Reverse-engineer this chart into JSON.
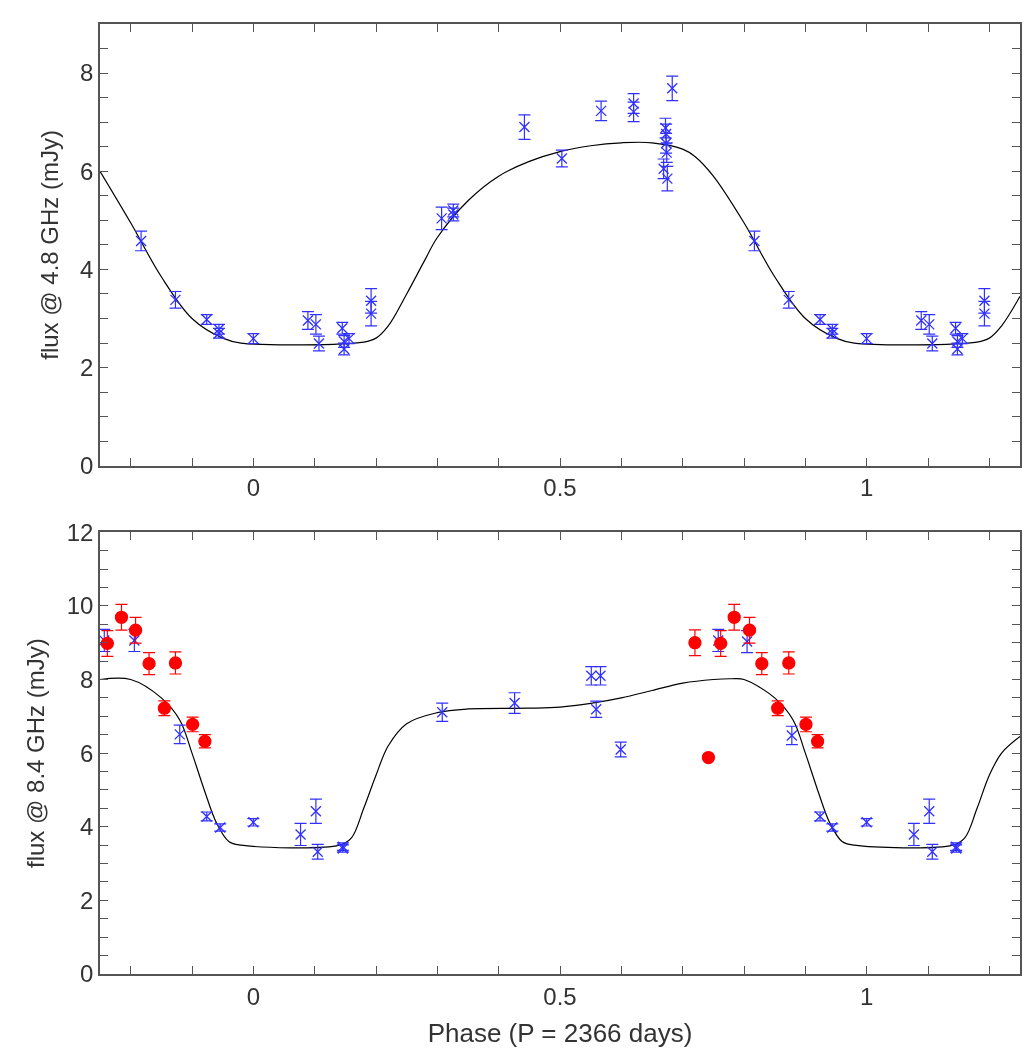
{
  "chart_data": [
    {
      "type": "scatter",
      "ylabel": "flux @ 4.8 GHz (mJy)",
      "xlim": [
        -0.25,
        1.25
      ],
      "xticks": [
        {
          "value": -0.2,
          "label": null
        },
        {
          "value": -0.1,
          "label": null
        },
        0,
        {
          "value": 0.1,
          "label": null
        },
        {
          "value": 0.2,
          "label": null
        },
        {
          "value": 0.3,
          "label": null
        },
        {
          "value": 0.4,
          "label": null
        },
        0.5,
        {
          "value": 0.6,
          "label": null
        },
        {
          "value": 0.7,
          "label": null
        },
        {
          "value": 0.8,
          "label": null
        },
        {
          "value": 0.9,
          "label": null
        },
        1,
        {
          "value": 1.1,
          "label": null
        },
        {
          "value": 1.2,
          "label": null
        }
      ],
      "ylim": [
        0,
        9
      ],
      "yticks": [
        0,
        {
          "value": 0.5,
          "label": null
        },
        {
          "value": 1,
          "label": null
        },
        {
          "value": 1.5,
          "label": null
        },
        2,
        {
          "value": 2.5,
          "label": null
        },
        {
          "value": 3,
          "label": null
        },
        {
          "value": 3.5,
          "label": null
        },
        4,
        {
          "value": 4.5,
          "label": null
        },
        {
          "value": 5,
          "label": null
        },
        {
          "value": 5.5,
          "label": null
        },
        6,
        {
          "value": 6.5,
          "label": null
        },
        {
          "value": 7,
          "label": null
        },
        {
          "value": 7.5,
          "label": null
        },
        8,
        {
          "value": 8.5,
          "label": null
        }
      ],
      "series": [
        {
          "type": "line",
          "color": "#000000",
          "marker": "none",
          "line_style": "solid",
          "x": [
            -0.25,
            -0.2,
            -0.15,
            -0.1,
            -0.05,
            -0.02,
            0.18,
            0.2,
            0.22,
            0.25,
            0.28,
            0.3,
            0.35,
            0.4,
            0.45,
            0.5,
            0.55,
            0.6,
            0.65,
            0.7,
            0.72,
            0.75,
            0.8,
            0.85,
            0.9,
            0.95,
            0.98,
            1.18,
            1.2,
            1.22,
            1.25
          ],
          "values": [
            6.0,
            4.95,
            3.85,
            3.0,
            2.6,
            2.5,
            2.52,
            2.6,
            2.85,
            3.5,
            4.2,
            4.65,
            5.4,
            5.9,
            6.2,
            6.4,
            6.52,
            6.58,
            6.58,
            6.45,
            6.3,
            5.9,
            4.95,
            3.85,
            3.0,
            2.6,
            2.5,
            2.52,
            2.6,
            2.85,
            3.45
          ]
        },
        {
          "color": "#3030ff",
          "marker": "cross",
          "x": [
            -0.183,
            -0.127,
            -0.076,
            -0.056,
            -0.056,
            0.0,
            0.089,
            0.102,
            0.107,
            0.145,
            0.148,
            0.148,
            0.156,
            0.192,
            0.192,
            0.307,
            0.326,
            0.326,
            0.442,
            0.503,
            0.567,
            0.62,
            0.62,
            0.672,
            0.673,
            0.673,
            0.674,
            0.669,
            0.675,
            0.683,
            0.817,
            0.873,
            0.924,
            0.944,
            0.944,
            1.0,
            1.089,
            1.102,
            1.107,
            1.145,
            1.148,
            1.148,
            1.156,
            1.192,
            1.192
          ],
          "values": [
            4.58,
            3.38,
            2.98,
            2.78,
            2.7,
            2.59,
            2.96,
            2.88,
            2.49,
            2.8,
            2.53,
            2.38,
            2.59,
            3.36,
            3.1,
            5.04,
            5.2,
            5.12,
            6.9,
            6.26,
            7.23,
            7.38,
            7.21,
            6.88,
            6.76,
            6.57,
            6.38,
            6.05,
            5.85,
            7.69,
            4.58,
            3.38,
            2.98,
            2.78,
            2.7,
            2.59,
            2.96,
            2.88,
            2.49,
            2.8,
            2.53,
            2.38,
            2.59,
            3.36,
            3.1
          ],
          "errors": [
            0.2,
            0.17,
            0.1,
            0.1,
            0.1,
            0.1,
            0.18,
            0.2,
            0.15,
            0.12,
            0.12,
            0.12,
            0.1,
            0.25,
            0.25,
            0.23,
            0.13,
            0.13,
            0.25,
            0.17,
            0.2,
            0.2,
            0.2,
            0.2,
            0.2,
            0.2,
            0.2,
            0.2,
            0.25,
            0.25,
            0.2,
            0.17,
            0.1,
            0.1,
            0.1,
            0.1,
            0.18,
            0.2,
            0.15,
            0.12,
            0.12,
            0.12,
            0.1,
            0.25,
            0.25
          ]
        }
      ]
    },
    {
      "type": "scatter",
      "ylabel": "flux @ 8.4 GHz (mJy)",
      "xlabel": "Phase (P = 2366 days)",
      "xlim": [
        -0.25,
        1.25
      ],
      "xticks": [
        {
          "value": -0.2,
          "label": null
        },
        {
          "value": -0.1,
          "label": null
        },
        0,
        {
          "value": 0.1,
          "label": null
        },
        {
          "value": 0.2,
          "label": null
        },
        {
          "value": 0.3,
          "label": null
        },
        {
          "value": 0.4,
          "label": null
        },
        0.5,
        {
          "value": 0.6,
          "label": null
        },
        {
          "value": 0.7,
          "label": null
        },
        {
          "value": 0.8,
          "label": null
        },
        {
          "value": 0.9,
          "label": null
        },
        1,
        {
          "value": 1.1,
          "label": null
        },
        {
          "value": 1.2,
          "label": null
        }
      ],
      "ylim": [
        0,
        12
      ],
      "yticks": [
        0,
        {
          "value": 0.5,
          "label": null
        },
        {
          "value": 1,
          "label": null
        },
        {
          "value": 1.5,
          "label": null
        },
        2,
        {
          "value": 2.5,
          "label": null
        },
        {
          "value": 3,
          "label": null
        },
        {
          "value": 3.5,
          "label": null
        },
        4,
        {
          "value": 4.5,
          "label": null
        },
        {
          "value": 5,
          "label": null
        },
        {
          "value": 5.5,
          "label": null
        },
        6,
        {
          "value": 6.5,
          "label": null
        },
        {
          "value": 7,
          "label": null
        },
        {
          "value": 7.5,
          "label": null
        },
        8,
        {
          "value": 8.5,
          "label": null
        },
        {
          "value": 9,
          "label": null
        },
        {
          "value": 9.5,
          "label": null
        },
        10,
        {
          "value": 10.5,
          "label": null
        },
        {
          "value": 11,
          "label": null
        },
        {
          "value": 11.5,
          "label": null
        },
        12
      ],
      "series": [
        {
          "type": "line",
          "color": "#000000",
          "marker": "none",
          "line_style": "solid",
          "x": [
            -0.25,
            -0.2,
            -0.15,
            -0.12,
            -0.1,
            -0.08,
            -0.06,
            -0.04,
            -0.02,
            0.14,
            0.16,
            0.18,
            0.2,
            0.22,
            0.25,
            0.3,
            0.35,
            0.45,
            0.5,
            0.55,
            0.6,
            0.65,
            0.7,
            0.75,
            0.78,
            0.8,
            0.85,
            0.88,
            0.9,
            0.92,
            0.94,
            0.96,
            0.98,
            1.14,
            1.16,
            1.18,
            1.2,
            1.22,
            1.25
          ],
          "values": [
            8.0,
            8.0,
            7.5,
            6.9,
            6.0,
            5.0,
            4.1,
            3.6,
            3.5,
            3.5,
            3.7,
            4.5,
            5.4,
            6.2,
            6.8,
            7.1,
            7.2,
            7.22,
            7.25,
            7.35,
            7.5,
            7.7,
            7.9,
            8.0,
            8.02,
            8.0,
            7.5,
            6.9,
            6.0,
            5.0,
            4.1,
            3.6,
            3.5,
            3.5,
            3.7,
            4.5,
            5.4,
            6.0,
            6.45
          ]
        },
        {
          "color": "#3030ff",
          "marker": "cross",
          "x": [
            -0.243,
            -0.194,
            -0.12,
            -0.076,
            -0.054,
            0.0,
            0.077,
            0.102,
            0.105,
            0.146,
            0.146,
            0.308,
            0.426,
            0.551,
            0.566,
            0.559,
            0.599,
            0.758,
            0.805,
            0.878,
            0.924,
            0.944,
            1.0,
            1.077,
            1.102,
            1.107,
            1.146,
            1.146
          ],
          "values": [
            9.06,
            9.06,
            6.51,
            4.28,
            3.98,
            4.12,
            3.79,
            4.42,
            3.32,
            3.46,
            3.41,
            7.11,
            7.36,
            8.1,
            8.1,
            7.19,
            6.1,
            9.06,
            9.03,
            6.48,
            4.28,
            3.98,
            4.12,
            3.79,
            4.42,
            3.32,
            3.46,
            3.41
          ],
          "errors": [
            0.3,
            0.3,
            0.25,
            0.12,
            0.1,
            0.1,
            0.3,
            0.33,
            0.2,
            0.1,
            0.1,
            0.25,
            0.28,
            0.25,
            0.25,
            0.22,
            0.2,
            0.3,
            0.3,
            0.25,
            0.12,
            0.1,
            0.1,
            0.3,
            0.33,
            0.2,
            0.1,
            0.1
          ]
        },
        {
          "color": "#ff0000",
          "marker": "circle",
          "x": [
            -0.238,
            -0.215,
            -0.192,
            -0.17,
            -0.127,
            -0.145,
            -0.099,
            -0.079,
            0.72,
            0.742,
            0.762,
            0.784,
            0.809,
            0.829,
            0.873,
            0.855,
            0.901,
            0.92
          ],
          "values": [
            8.98,
            9.69,
            9.34,
            8.43,
            8.45,
            7.22,
            6.78,
            6.32,
            9.0,
            5.88,
            8.98,
            9.69,
            9.34,
            8.43,
            8.45,
            7.22,
            6.78,
            6.32
          ],
          "errors": [
            0.35,
            0.35,
            0.35,
            0.3,
            0.3,
            0.2,
            0.2,
            0.18,
            0.35,
            null,
            0.35,
            0.35,
            0.35,
            0.3,
            0.3,
            0.2,
            0.2,
            0.18
          ]
        }
      ]
    }
  ]
}
